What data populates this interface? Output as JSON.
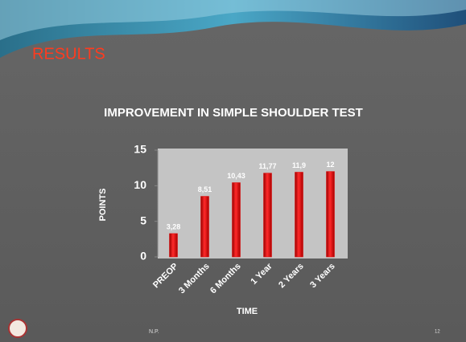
{
  "slide": {
    "heading": "RESULTS",
    "footer": "N.P.",
    "page_number": "12"
  },
  "chart_data": {
    "type": "bar",
    "title": "IMPROVEMENT IN SIMPLE SHOULDER TEST",
    "x_label": "TIME",
    "y_label": "POINTS",
    "categories": [
      "PREOP",
      "3 Months",
      "6 Months",
      "1 Year",
      "2 Years",
      "3 Years"
    ],
    "values": [
      3.28,
      8.51,
      10.43,
      11.77,
      11.9,
      12
    ],
    "value_labels": [
      "3,28",
      "8,51",
      "10,43",
      "11,77",
      "11,9",
      "12"
    ],
    "color": "#e00000",
    "ylim": [
      0,
      15
    ],
    "yticks": [
      0,
      5,
      10,
      15
    ],
    "grid": false
  }
}
